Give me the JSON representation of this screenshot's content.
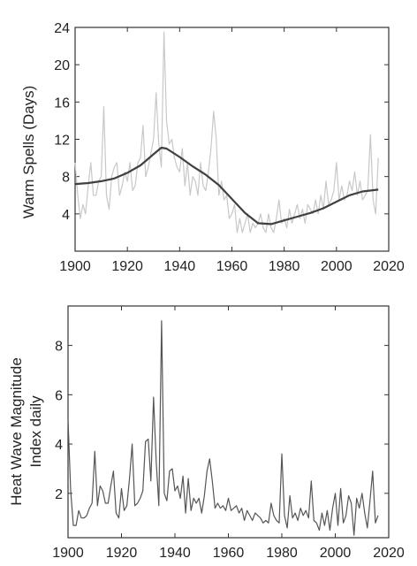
{
  "chart_data": [
    {
      "type": "line",
      "title": "",
      "xlabel": "",
      "ylabel": "Warm Spells (Days)",
      "xlim": [
        1900,
        2020
      ],
      "ylim": [
        0,
        24
      ],
      "xticks": [
        1900,
        1920,
        1940,
        1960,
        1980,
        2000,
        2020
      ],
      "yticks": [
        4,
        8,
        12,
        16,
        20,
        24
      ],
      "grid": false,
      "legend": "none",
      "series": [
        {
          "role": "annual",
          "color": "#c8c8c8",
          "x": [
            1900,
            1901,
            1902,
            1903,
            1904,
            1905,
            1906,
            1907,
            1908,
            1909,
            1910,
            1911,
            1912,
            1913,
            1914,
            1915,
            1916,
            1917,
            1918,
            1919,
            1920,
            1921,
            1922,
            1923,
            1924,
            1925,
            1926,
            1927,
            1928,
            1929,
            1930,
            1931,
            1932,
            1933,
            1934,
            1935,
            1936,
            1937,
            1938,
            1939,
            1940,
            1941,
            1942,
            1943,
            1944,
            1945,
            1946,
            1947,
            1948,
            1949,
            1950,
            1951,
            1952,
            1953,
            1954,
            1955,
            1956,
            1957,
            1958,
            1959,
            1960,
            1961,
            1962,
            1963,
            1964,
            1965,
            1966,
            1967,
            1968,
            1969,
            1970,
            1971,
            1972,
            1973,
            1974,
            1975,
            1976,
            1977,
            1978,
            1979,
            1980,
            1981,
            1982,
            1983,
            1984,
            1985,
            1986,
            1987,
            1988,
            1989,
            1990,
            1991,
            1992,
            1993,
            1994,
            1995,
            1996,
            1997,
            1998,
            1999,
            2000,
            2001,
            2002,
            2003,
            2004,
            2005,
            2006,
            2007,
            2008,
            2009,
            2010,
            2011,
            2012,
            2013,
            2014,
            2015,
            2016
          ],
          "y": [
            9.5,
            6,
            3.5,
            5,
            4,
            7,
            9.5,
            6,
            6,
            7.5,
            8,
            15.5,
            6,
            4.5,
            8,
            9,
            9.5,
            6,
            7,
            8.5,
            7.5,
            9.5,
            6.5,
            7,
            9.5,
            10,
            13.5,
            8,
            9,
            10.5,
            12,
            17,
            11.5,
            9,
            23.5,
            14,
            11.5,
            12,
            10,
            9,
            8.5,
            11,
            7,
            9.5,
            6,
            8,
            7.5,
            6,
            9.5,
            7,
            6.5,
            8.5,
            11,
            15,
            12,
            6,
            7.5,
            5.5,
            6,
            3.5,
            4,
            5,
            2,
            3.5,
            2,
            3,
            4,
            2,
            3,
            2.5,
            3,
            4,
            2.5,
            2,
            4,
            2.5,
            2,
            3.5,
            5.5,
            3,
            3.5,
            2.5,
            4.5,
            3,
            4,
            5,
            3.5,
            4.5,
            3,
            5,
            4.5,
            4,
            5.5,
            4,
            6,
            4.5,
            7.5,
            5,
            5.5,
            6.5,
            9.5,
            5.5,
            7,
            5.5,
            6,
            7.5,
            6.5,
            8.5,
            6,
            7.5,
            5.5,
            6,
            6.5,
            12.5,
            5.5,
            4,
            10
          ]
        },
        {
          "role": "smoothed",
          "color": "#404040",
          "x": [
            1900,
            1905,
            1910,
            1915,
            1920,
            1925,
            1930,
            1933,
            1935,
            1940,
            1945,
            1950,
            1955,
            1960,
            1965,
            1970,
            1975,
            1980,
            1985,
            1990,
            1995,
            2000,
            2005,
            2010,
            2016
          ],
          "y": [
            7.2,
            7.3,
            7.5,
            7.8,
            8.4,
            9.2,
            10.4,
            11.1,
            11,
            10.1,
            9.1,
            8.2,
            7.1,
            5.6,
            4.1,
            3.0,
            2.9,
            3.3,
            3.7,
            4.1,
            4.6,
            5.3,
            6.0,
            6.4,
            6.6
          ]
        }
      ]
    },
    {
      "type": "line",
      "title": "",
      "xlabel": "",
      "ylabel": [
        "Heat Wave Magnitude",
        "Index daily"
      ],
      "xlim": [
        1900,
        2020
      ],
      "ylim": [
        0.2,
        9.6
      ],
      "xticks": [
        1900,
        1920,
        1940,
        1960,
        1980,
        2000,
        2020
      ],
      "yticks": [
        2,
        4,
        6,
        8
      ],
      "grid": false,
      "legend": "none",
      "series": [
        {
          "color": "#555555",
          "x": [
            1900,
            1901,
            1902,
            1903,
            1904,
            1905,
            1906,
            1907,
            1908,
            1909,
            1910,
            1911,
            1912,
            1913,
            1914,
            1915,
            1916,
            1917,
            1918,
            1919,
            1920,
            1921,
            1922,
            1923,
            1924,
            1925,
            1926,
            1927,
            1928,
            1929,
            1930,
            1931,
            1932,
            1933,
            1934,
            1935,
            1936,
            1937,
            1938,
            1939,
            1940,
            1941,
            1942,
            1943,
            1944,
            1945,
            1946,
            1947,
            1948,
            1949,
            1950,
            1951,
            1952,
            1953,
            1954,
            1955,
            1956,
            1957,
            1958,
            1959,
            1960,
            1961,
            1962,
            1963,
            1964,
            1965,
            1966,
            1967,
            1968,
            1969,
            1970,
            1971,
            1972,
            1973,
            1974,
            1975,
            1976,
            1977,
            1978,
            1979,
            1980,
            1981,
            1982,
            1983,
            1984,
            1985,
            1986,
            1987,
            1988,
            1989,
            1990,
            1991,
            1992,
            1993,
            1994,
            1995,
            1996,
            1997,
            1998,
            1999,
            2000,
            2001,
            2002,
            2003,
            2004,
            2005,
            2006,
            2007,
            2008,
            2009,
            2010,
            2011,
            2012,
            2013,
            2014,
            2015,
            2016
          ],
          "y": [
            5,
            2.1,
            0.7,
            0.7,
            1.3,
            1,
            1,
            1.1,
            1.4,
            1.6,
            3.7,
            1.5,
            2.3,
            2.1,
            1.6,
            1.6,
            2.3,
            2.9,
            1.2,
            1,
            2.2,
            1.3,
            1.5,
            2.6,
            4,
            1.5,
            1.6,
            1.8,
            2.1,
            4.1,
            4.2,
            2.5,
            5.9,
            3.3,
            1.5,
            9,
            2,
            1.7,
            2.9,
            3,
            2.1,
            2.3,
            1.8,
            2.7,
            1.2,
            2.6,
            1.3,
            1.8,
            1.6,
            1.8,
            1.2,
            1.9,
            2.9,
            3.4,
            2.5,
            1.4,
            1.6,
            1.4,
            1.5,
            1.3,
            1.8,
            1.3,
            1.4,
            1.5,
            1.2,
            1.4,
            0.9,
            1.3,
            1.1,
            0.9,
            1.2,
            1.1,
            1,
            0.8,
            0.9,
            0.8,
            1.6,
            1.1,
            0.9,
            0.8,
            3.6,
            1.1,
            0.6,
            1.9,
            1,
            1.2,
            0.9,
            1.4,
            1.1,
            1.3,
            1,
            2.5,
            0.9,
            0.8,
            0.5,
            1.2,
            0.7,
            1.3,
            0.5,
            1.4,
            2,
            0.7,
            2.2,
            0.8,
            1.1,
            1.9,
            1.6,
            0.3,
            1.8,
            1.4,
            2,
            1.2,
            0.6,
            1.7,
            2.9,
            0.8,
            1.1
          ]
        }
      ]
    }
  ]
}
